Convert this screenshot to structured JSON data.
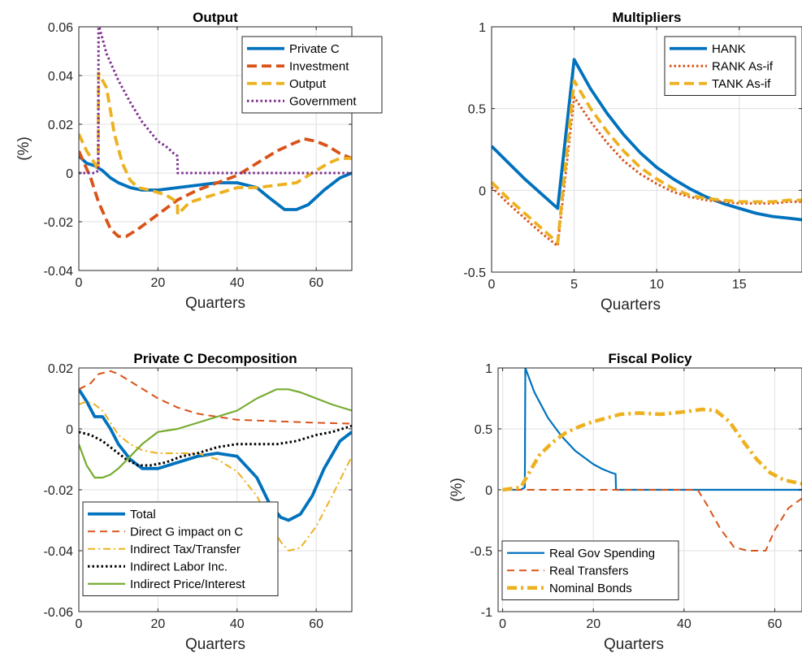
{
  "chart_data": [
    {
      "type": "line",
      "title": "Output",
      "xlabel": "Quarters",
      "ylabel": "(%)",
      "xlim": [
        0,
        69
      ],
      "ylim": [
        -0.04,
        0.06
      ],
      "xticks": [
        0,
        20,
        40,
        60
      ],
      "yticks": [
        -0.04,
        -0.02,
        0,
        0.02,
        0.04,
        0.06
      ],
      "xtick_labels": [
        "0",
        "20",
        "40",
        "60"
      ],
      "ytick_labels": [
        "-0.04",
        "-0.02",
        "0",
        "0.02",
        "0.04",
        "0.06"
      ],
      "grid": true,
      "legend_position": "top-right",
      "series": [
        {
          "name": "Private C",
          "color": "#0072BD",
          "style": "solid-thick",
          "x": [
            0,
            2,
            4,
            6,
            8,
            10,
            13,
            16,
            20,
            25,
            30,
            35,
            40,
            45,
            48,
            52,
            55,
            58,
            62,
            66,
            69
          ],
          "y": [
            0.007,
            0.004,
            0.003,
            0.001,
            -0.002,
            -0.004,
            -0.006,
            -0.007,
            -0.007,
            -0.006,
            -0.005,
            -0.004,
            -0.004,
            -0.006,
            -0.01,
            -0.015,
            -0.015,
            -0.013,
            -0.007,
            -0.002,
            0.0
          ]
        },
        {
          "name": "Investment",
          "color": "#D95319",
          "style": "dashed",
          "x": [
            0,
            3,
            5,
            8,
            10,
            12,
            15,
            20,
            25,
            30,
            35,
            40,
            45,
            50,
            54,
            57,
            60,
            63,
            66,
            69
          ],
          "y": [
            0.009,
            -0.002,
            -0.012,
            -0.023,
            -0.026,
            -0.026,
            -0.023,
            -0.017,
            -0.011,
            -0.007,
            -0.004,
            -0.001,
            0.004,
            0.009,
            0.012,
            0.014,
            0.013,
            0.011,
            0.008,
            0.006
          ]
        },
        {
          "name": "Output",
          "color": "#EDB120",
          "style": "dashed",
          "x": [
            0,
            2,
            4,
            4.9,
            5,
            7,
            9,
            11,
            13,
            15,
            18,
            20,
            22,
            24,
            24.9,
            25,
            28,
            32,
            36,
            40,
            45,
            50,
            55,
            60,
            63,
            66,
            69
          ],
          "y": [
            0.016,
            0.009,
            0.004,
            0.001,
            0.041,
            0.035,
            0.016,
            0.004,
            -0.003,
            -0.006,
            -0.007,
            -0.008,
            -0.009,
            -0.011,
            -0.012,
            -0.017,
            -0.012,
            -0.01,
            -0.008,
            -0.006,
            -0.006,
            -0.005,
            -0.004,
            0.001,
            0.004,
            0.006,
            0.006
          ]
        },
        {
          "name": "Government",
          "color": "#7E2F8E",
          "style": "dotted",
          "x": [
            0,
            3,
            4,
            4.9,
            5,
            7,
            10,
            13,
            16,
            20,
            22,
            24,
            24.9,
            25,
            30,
            69
          ],
          "y": [
            0,
            0,
            0,
            0.001,
            0.061,
            0.049,
            0.038,
            0.029,
            0.021,
            0.013,
            0.011,
            0.008,
            0.007,
            0,
            0,
            0
          ]
        }
      ]
    },
    {
      "type": "line",
      "title": "Multipliers",
      "xlabel": "Quarters",
      "ylabel": "",
      "xlim": [
        0,
        18.8
      ],
      "ylim": [
        -0.5,
        1
      ],
      "xticks": [
        0,
        5,
        10,
        15
      ],
      "yticks": [
        -0.5,
        0,
        0.5,
        1
      ],
      "xtick_labels": [
        "0",
        "5",
        "10",
        "15"
      ],
      "ytick_labels": [
        "-0.5",
        "0",
        "0.5",
        "1"
      ],
      "grid": true,
      "legend_position": "top-right",
      "series": [
        {
          "name": "HANK",
          "color": "#0072BD",
          "style": "solid-thick",
          "x": [
            0,
            1,
            2,
            3,
            4,
            5,
            6,
            7,
            8,
            9,
            10,
            11,
            12,
            13,
            14,
            15,
            16,
            17,
            18,
            18.8
          ],
          "y": [
            0.27,
            0.17,
            0.07,
            -0.02,
            -0.11,
            0.8,
            0.62,
            0.47,
            0.34,
            0.23,
            0.14,
            0.07,
            0.01,
            -0.04,
            -0.08,
            -0.11,
            -0.14,
            -0.16,
            -0.17,
            -0.18
          ]
        },
        {
          "name": "RANK As-if",
          "color": "#D95319",
          "style": "dotted",
          "x": [
            0,
            1,
            2,
            3,
            4,
            5,
            6,
            7,
            8,
            9,
            10,
            11,
            12,
            13,
            14,
            15,
            16,
            17,
            18,
            18.8
          ],
          "y": [
            0.02,
            -0.08,
            -0.17,
            -0.26,
            -0.34,
            0.57,
            0.42,
            0.29,
            0.18,
            0.1,
            0.04,
            -0.01,
            -0.04,
            -0.06,
            -0.07,
            -0.08,
            -0.08,
            -0.08,
            -0.07,
            -0.07
          ]
        },
        {
          "name": "TANK As-if",
          "color": "#EDB120",
          "style": "dashed",
          "x": [
            0,
            1,
            2,
            3,
            4,
            5,
            6,
            7,
            8,
            9,
            10,
            11,
            12,
            13,
            14,
            15,
            16,
            17,
            18,
            18.8
          ],
          "y": [
            0.05,
            -0.05,
            -0.14,
            -0.23,
            -0.32,
            0.67,
            0.5,
            0.36,
            0.24,
            0.14,
            0.07,
            0.01,
            -0.03,
            -0.05,
            -0.06,
            -0.07,
            -0.07,
            -0.07,
            -0.06,
            -0.06
          ]
        }
      ]
    },
    {
      "type": "line",
      "title": "Private C Decomposition",
      "xlabel": "Quarters",
      "ylabel": "",
      "xlim": [
        0,
        69
      ],
      "ylim": [
        -0.06,
        0.02
      ],
      "xticks": [
        0,
        20,
        40,
        60
      ],
      "yticks": [
        -0.06,
        -0.04,
        -0.02,
        0,
        0.02
      ],
      "xtick_labels": [
        "0",
        "20",
        "40",
        "60"
      ],
      "ytick_labels": [
        "-0.06",
        "-0.04",
        "-0.02",
        "0",
        "0.02"
      ],
      "grid": true,
      "legend_position": "bottom-left",
      "series": [
        {
          "name": "Total",
          "color": "#0072BD",
          "style": "solid-thick",
          "x": [
            0,
            2,
            4,
            6,
            8,
            10,
            13,
            16,
            20,
            25,
            30,
            35,
            40,
            45,
            48,
            51,
            53,
            56,
            59,
            62,
            66,
            69
          ],
          "y": [
            0.013,
            0.009,
            0.004,
            0.004,
            0.0,
            -0.005,
            -0.01,
            -0.013,
            -0.013,
            -0.011,
            -0.009,
            -0.008,
            -0.009,
            -0.016,
            -0.024,
            -0.029,
            -0.03,
            -0.028,
            -0.022,
            -0.013,
            -0.004,
            -0.001
          ]
        },
        {
          "name": "Direct G impact on C",
          "color": "#D95319",
          "style": "dashed-thin",
          "x": [
            0,
            3,
            5,
            8,
            10,
            15,
            20,
            25,
            30,
            40,
            50,
            60,
            69
          ],
          "y": [
            0.013,
            0.015,
            0.018,
            0.019,
            0.018,
            0.014,
            0.01,
            0.007,
            0.005,
            0.003,
            0.0025,
            0.002,
            0.0017
          ]
        },
        {
          "name": "Indirect Tax/Transfer",
          "color": "#EDB120",
          "style": "dashdot",
          "x": [
            0,
            2,
            4,
            6,
            8,
            10,
            13,
            16,
            20,
            25,
            30,
            35,
            40,
            45,
            48,
            51,
            53,
            56,
            60,
            64,
            69
          ],
          "y": [
            0.008,
            0.009,
            0.008,
            0.006,
            0.002,
            -0.002,
            -0.005,
            -0.007,
            -0.008,
            -0.008,
            -0.008,
            -0.01,
            -0.014,
            -0.022,
            -0.03,
            -0.037,
            -0.04,
            -0.039,
            -0.032,
            -0.022,
            -0.009
          ]
        },
        {
          "name": "Indirect Labor Inc.",
          "color": "#000000",
          "style": "dotted",
          "x": [
            0,
            3,
            6,
            9,
            12,
            15,
            18,
            22,
            26,
            30,
            35,
            40,
            45,
            50,
            55,
            60,
            64,
            69
          ],
          "y": [
            -0.001,
            -0.002,
            -0.004,
            -0.007,
            -0.01,
            -0.012,
            -0.012,
            -0.011,
            -0.009,
            -0.008,
            -0.006,
            -0.005,
            -0.005,
            -0.005,
            -0.004,
            -0.002,
            -0.001,
            0.001
          ]
        },
        {
          "name": "Indirect Price/Interest",
          "color": "#77AC30",
          "style": "solid",
          "x": [
            0,
            2,
            4,
            6,
            8,
            10,
            13,
            16,
            20,
            25,
            30,
            35,
            40,
            45,
            50,
            53,
            56,
            60,
            64,
            69
          ],
          "y": [
            -0.005,
            -0.012,
            -0.016,
            -0.016,
            -0.015,
            -0.013,
            -0.009,
            -0.005,
            -0.001,
            0.0,
            0.002,
            0.004,
            0.006,
            0.01,
            0.013,
            0.013,
            0.012,
            0.01,
            0.008,
            0.006
          ]
        }
      ]
    },
    {
      "type": "line",
      "title": "Fiscal Policy",
      "xlabel": "Quarters",
      "ylabel": "(%)",
      "xlim": [
        -1,
        66
      ],
      "ylim": [
        -1,
        1
      ],
      "xticks": [
        0,
        20,
        40,
        60
      ],
      "yticks": [
        -1,
        -0.5,
        0,
        0.5,
        1
      ],
      "xtick_labels": [
        "0",
        "20",
        "40",
        "60"
      ],
      "ytick_labels": [
        "-1",
        "-0.5",
        "0",
        "0.5",
        "1"
      ],
      "grid": true,
      "legend_position": "bottom-left",
      "series": [
        {
          "name": "Real Gov Spending",
          "color": "#0072BD",
          "style": "solid",
          "x": [
            0,
            4,
            4.9,
            5,
            7,
            10,
            13,
            16,
            20,
            22,
            24,
            24.9,
            25,
            30,
            66
          ],
          "y": [
            0,
            0,
            0.02,
            1.0,
            0.8,
            0.59,
            0.44,
            0.32,
            0.21,
            0.17,
            0.14,
            0.13,
            0,
            0,
            0
          ]
        },
        {
          "name": "Real Transfers",
          "color": "#D95319",
          "style": "dashed-thin",
          "x": [
            0,
            10,
            20,
            30,
            40,
            43,
            45,
            48,
            51,
            54,
            57,
            58,
            60,
            63,
            66
          ],
          "y": [
            0,
            0,
            0,
            0,
            0,
            0,
            -0.12,
            -0.32,
            -0.47,
            -0.5,
            -0.5,
            -0.5,
            -0.33,
            -0.15,
            -0.07
          ]
        },
        {
          "name": "Nominal Bonds",
          "color": "#EDB120",
          "style": "dashdot-thick",
          "x": [
            0,
            4,
            6,
            8,
            11,
            14,
            17,
            20,
            23,
            26,
            30,
            35,
            40,
            44,
            47,
            50,
            53,
            56,
            59,
            62,
            66
          ],
          "y": [
            0,
            0.02,
            0.15,
            0.28,
            0.39,
            0.47,
            0.52,
            0.56,
            0.59,
            0.62,
            0.63,
            0.62,
            0.64,
            0.66,
            0.65,
            0.56,
            0.4,
            0.25,
            0.14,
            0.08,
            0.05
          ]
        }
      ]
    }
  ]
}
